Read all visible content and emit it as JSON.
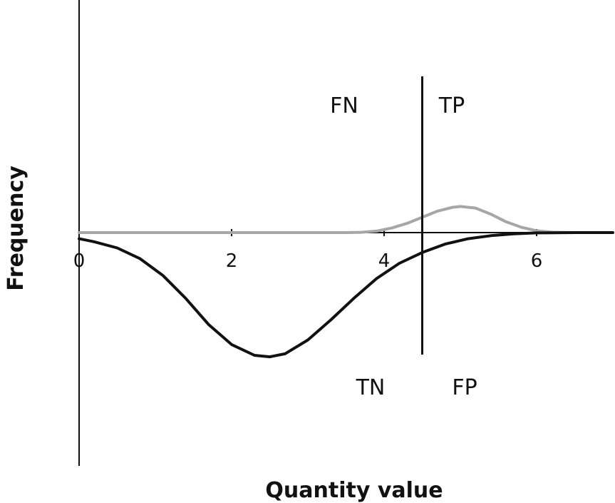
{
  "chart_data": {
    "type": "line",
    "title": "",
    "xlabel": "Quantity value",
    "ylabel": "Frequency",
    "xlim": [
      0,
      7
    ],
    "ylim": [
      -1,
      1
    ],
    "x_ticks": [
      "0",
      "2",
      "4",
      "6"
    ],
    "grid": false,
    "legend": "none",
    "threshold_x": 4.5,
    "region_labels": {
      "fn": "FN",
      "tp": "TP",
      "tn": "TN",
      "fp": "FP"
    },
    "series": [
      {
        "color": "#a6a6a6",
        "x": [
          0,
          3.5,
          3.7,
          3.9,
          4.1,
          4.3,
          4.5,
          4.7,
          4.9,
          5.0,
          5.2,
          5.4,
          5.6,
          5.8,
          6.0,
          6.2,
          6.5,
          7
        ],
        "y": [
          0,
          0,
          0.002,
          0.01,
          0.03,
          0.06,
          0.1,
          0.14,
          0.165,
          0.17,
          0.16,
          0.12,
          0.07,
          0.035,
          0.012,
          0.003,
          0,
          0
        ]
      },
      {
        "color": "#111111",
        "x": [
          0,
          0.2,
          0.5,
          0.8,
          1.1,
          1.4,
          1.7,
          2.0,
          2.3,
          2.5,
          2.7,
          3.0,
          3.3,
          3.6,
          3.9,
          4.2,
          4.5,
          4.8,
          5.1,
          5.4,
          5.7,
          6.0,
          6.5,
          7
        ],
        "y": [
          -0.04,
          -0.06,
          -0.1,
          -0.17,
          -0.28,
          -0.43,
          -0.6,
          -0.73,
          -0.8,
          -0.81,
          -0.79,
          -0.7,
          -0.57,
          -0.43,
          -0.3,
          -0.2,
          -0.13,
          -0.075,
          -0.04,
          -0.02,
          -0.008,
          -0.002,
          0,
          0
        ]
      }
    ]
  }
}
